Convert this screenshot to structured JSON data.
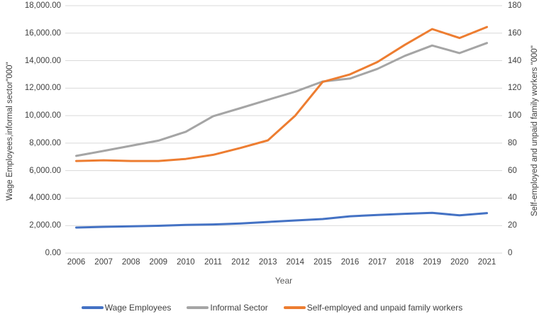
{
  "chart_data": {
    "type": "line",
    "title": "",
    "xlabel": "Year",
    "ylabel_left": "Wage Employees,informal sector\"000\"",
    "ylabel_right": "Self-employed and unpaid family workers \"000\"",
    "grid": true,
    "legend_position": "bottom",
    "x": [
      2006,
      2007,
      2008,
      2009,
      2010,
      2011,
      2012,
      2013,
      2014,
      2015,
      2016,
      2017,
      2018,
      2019,
      2020,
      2021
    ],
    "axes": {
      "left": {
        "min": 0,
        "max": 18000,
        "step": 2000,
        "tick_format": "#,##0.00"
      },
      "right": {
        "min": 0,
        "max": 180,
        "step": 20,
        "tick_format": "0"
      }
    },
    "colors": {
      "gridline": "#D9D9D9",
      "blue": "#4472C4",
      "gray": "#A5A5A5",
      "orange": "#ED7D31"
    },
    "series": [
      {
        "name": "Wage Employees",
        "axis": "left",
        "color": "#4472C4",
        "values": [
          1858,
          1909,
          1943,
          1988,
          2050,
          2084,
          2155,
          2265,
          2370,
          2478,
          2676,
          2770,
          2855,
          2928,
          2743,
          2907
        ]
      },
      {
        "name": "Informal Sector",
        "axis": "left",
        "color": "#A5A5A5",
        "values": [
          7069,
          7434,
          7810,
          8180,
          8826,
          9958,
          10546,
          11150,
          11742,
          12480,
          12700,
          13400,
          14350,
          15100,
          14550,
          15280
        ]
      },
      {
        "name": "Self-employed and unpaid family workers",
        "axis": "right",
        "color": "#ED7D31",
        "values": [
          67,
          67.5,
          67,
          67,
          68.5,
          71.5,
          76.5,
          82,
          100,
          124.5,
          130,
          139,
          151.5,
          163,
          156.5,
          164.5
        ]
      }
    ]
  }
}
